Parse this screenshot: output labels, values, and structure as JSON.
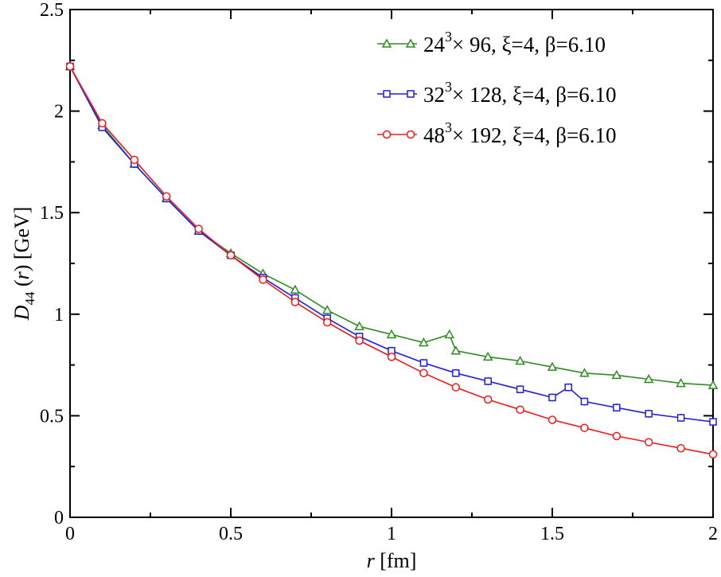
{
  "chart_data": {
    "type": "line",
    "title": "",
    "xlabel": "r [fm]",
    "ylabel": "D44 (r) [GeV]",
    "xlim": [
      0,
      2
    ],
    "ylim": [
      0,
      2.5
    ],
    "x_ticks": [
      "0",
      "0.5",
      "1",
      "1.5",
      "2"
    ],
    "y_ticks": [
      "0",
      "0.5",
      "1",
      "1.5",
      "2",
      "2.5"
    ],
    "legend_position": "top-right",
    "series": [
      {
        "name": "24^3 × 96, ξ=4, β=6.10",
        "legend_parts": [
          "24",
          "3",
          "×  96, ξ=4, β=6.10"
        ],
        "color": "#2e8b22",
        "marker": "triangle",
        "x": [
          0.0,
          0.1,
          0.2,
          0.3,
          0.4,
          0.5,
          0.6,
          0.7,
          0.8,
          0.9,
          1.0,
          1.1,
          1.18,
          1.2,
          1.3,
          1.4,
          1.5,
          1.6,
          1.7,
          1.8,
          1.9,
          2.0
        ],
        "y": [
          2.22,
          1.93,
          1.74,
          1.57,
          1.41,
          1.3,
          1.2,
          1.12,
          1.02,
          0.94,
          0.9,
          0.86,
          0.9,
          0.82,
          0.79,
          0.77,
          0.74,
          0.71,
          0.7,
          0.68,
          0.66,
          0.65
        ]
      },
      {
        "name": "32^3 × 128, ξ=4, β=6.10",
        "legend_parts": [
          "32",
          "3",
          "× 128, ξ=4, β=6.10"
        ],
        "color": "#1f1fdc",
        "marker": "square",
        "x": [
          0.0,
          0.1,
          0.2,
          0.3,
          0.4,
          0.5,
          0.6,
          0.7,
          0.8,
          0.9,
          1.0,
          1.1,
          1.2,
          1.3,
          1.4,
          1.5,
          1.55,
          1.6,
          1.7,
          1.8,
          1.9,
          2.0
        ],
        "y": [
          2.22,
          1.92,
          1.74,
          1.57,
          1.41,
          1.29,
          1.18,
          1.08,
          0.98,
          0.89,
          0.82,
          0.76,
          0.71,
          0.67,
          0.63,
          0.59,
          0.64,
          0.57,
          0.54,
          0.51,
          0.49,
          0.47
        ]
      },
      {
        "name": "48^3 × 192, ξ=4, β=6.10",
        "legend_parts": [
          "48",
          "3",
          "× 192, ξ=4, β=6.10"
        ],
        "color": "#ee1a1a",
        "marker": "circle",
        "x": [
          0.0,
          0.1,
          0.2,
          0.3,
          0.4,
          0.5,
          0.6,
          0.7,
          0.8,
          0.9,
          1.0,
          1.1,
          1.2,
          1.3,
          1.4,
          1.5,
          1.6,
          1.7,
          1.8,
          1.9,
          2.0
        ],
        "y": [
          2.22,
          1.94,
          1.76,
          1.58,
          1.42,
          1.29,
          1.17,
          1.06,
          0.96,
          0.87,
          0.79,
          0.71,
          0.64,
          0.58,
          0.53,
          0.48,
          0.44,
          0.4,
          0.37,
          0.34,
          0.31
        ]
      }
    ]
  }
}
